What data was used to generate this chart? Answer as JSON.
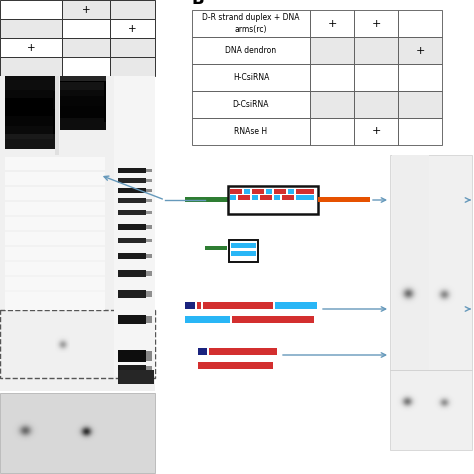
{
  "title_b": "B",
  "table_rows": [
    "D-R strand duplex + DNA\narms(rc)",
    "DNA dendron",
    "H-CsiRNA",
    "D-CsiRNA",
    "RNAse H"
  ],
  "row_data": [
    [
      "+",
      "+",
      ""
    ],
    [
      "",
      "",
      "+"
    ],
    [
      "",
      "",
      ""
    ],
    [
      "",
      "",
      ""
    ],
    [
      "",
      "+",
      ""
    ]
  ],
  "left_table_data": [
    [
      "",
      "+",
      ""
    ],
    [
      "",
      "",
      "+"
    ],
    [
      "+",
      "",
      ""
    ]
  ],
  "colors": {
    "green": "#2e7d32",
    "red": "#d32f2f",
    "cyan": "#29b6f6",
    "orange": "#e65100",
    "navy": "#1a237e"
  },
  "gel_bg": "#f5f5f5",
  "ladder_bg": "#eeeeee"
}
